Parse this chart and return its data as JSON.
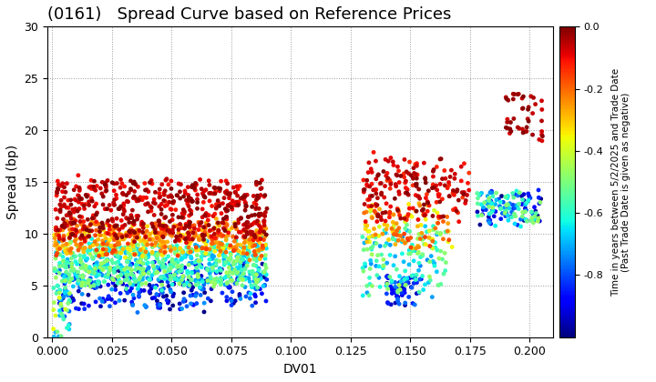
{
  "title": "(0161)   Spread Curve based on Reference Prices",
  "xlabel": "DV01",
  "ylabel": "Spread (bp)",
  "xlim": [
    -0.002,
    0.21
  ],
  "ylim": [
    0,
    30
  ],
  "xticks": [
    0.0,
    0.025,
    0.05,
    0.075,
    0.1,
    0.125,
    0.15,
    0.175,
    0.2
  ],
  "yticks": [
    0,
    5,
    10,
    15,
    20,
    25,
    30
  ],
  "colorbar_label": "Time in years between 5/2/2025 and Trade Date\n(Past Trade Date is given as negative)",
  "cmap": "jet",
  "clim": [
    -1.0,
    0.0
  ],
  "cticks": [
    0.0,
    -0.2,
    -0.4,
    -0.6,
    -0.8
  ],
  "marker_size": 12,
  "background_color": "#ffffff",
  "grid_color": "#999999",
  "title_fontsize": 13
}
